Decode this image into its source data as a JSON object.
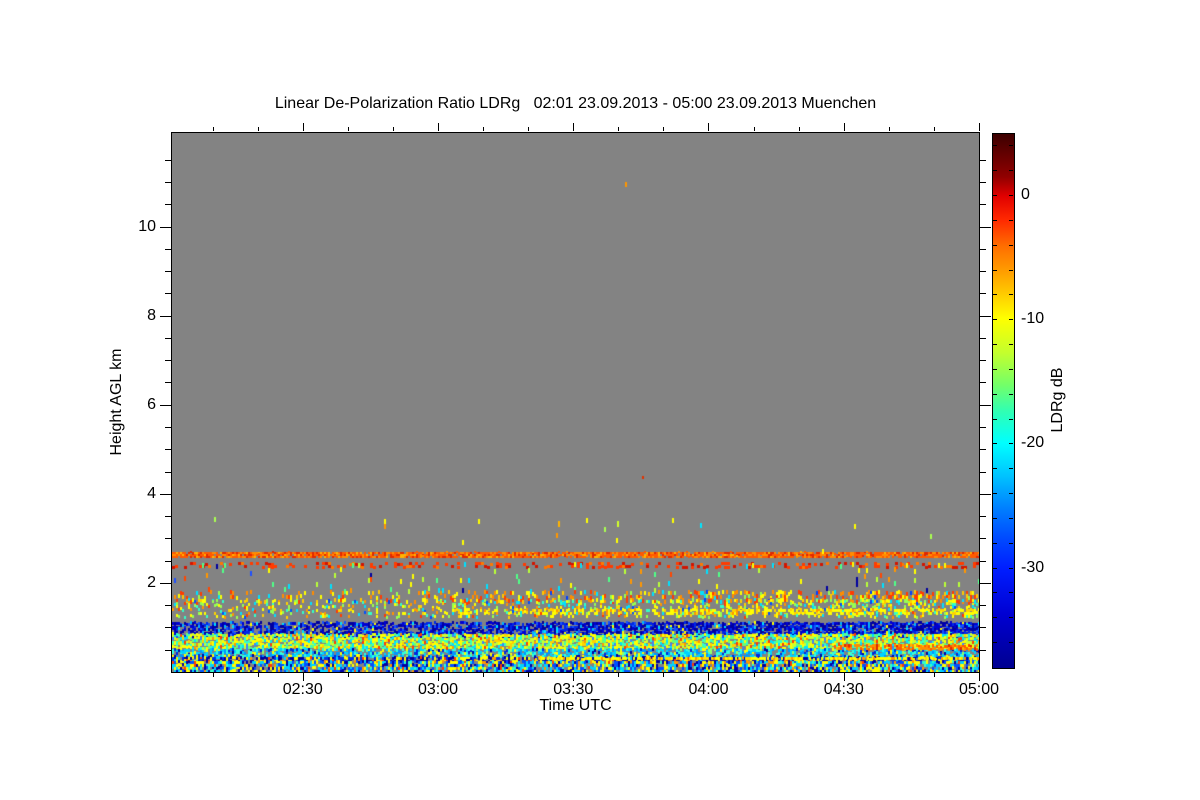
{
  "chart_data": {
    "type": "heatmap",
    "title": "Linear De-Polarization Ratio LDRg   02:01 23.09.2013 - 05:00 23.09.2013 Muenchen",
    "instrument_quantity": "Linear De-Polarization Ratio LDRg",
    "time_start": "02:01 23.09.2013",
    "time_end": "05:00 23.09.2013",
    "station": "Muenchen",
    "background_color": "#838383",
    "x_axis": {
      "label": "Time UTC",
      "start_hhmm": "02:01",
      "end_hhmm": "05:00",
      "duration_min": 179,
      "major_ticks": [
        {
          "label": "02:30",
          "min": 29
        },
        {
          "label": "03:00",
          "min": 59
        },
        {
          "label": "03:30",
          "min": 89
        },
        {
          "label": "04:00",
          "min": 119
        },
        {
          "label": "04:30",
          "min": 149
        },
        {
          "label": "05:00",
          "min": 179
        }
      ],
      "minor_interval_min": 10
    },
    "y_axis": {
      "label": "Height AGL km",
      "range_km": [
        0,
        12.1
      ],
      "major_ticks": [
        {
          "label": "2",
          "km": 2
        },
        {
          "label": "4",
          "km": 4
        },
        {
          "label": "6",
          "km": 6
        },
        {
          "label": "8",
          "km": 8
        },
        {
          "label": "10",
          "km": 10
        }
      ],
      "minor_interval_km": 0.5
    },
    "colorbar": {
      "label": "LDRg dB",
      "range_db": [
        5,
        -38
      ],
      "ticks": [
        {
          "label": "0",
          "db": 0
        },
        {
          "label": "-10",
          "db": -10
        },
        {
          "label": "-20",
          "db": -20
        },
        {
          "label": "-30",
          "db": -30
        }
      ],
      "minor_interval_db": 2,
      "gradient": [
        [
          0.0,
          "#3c0000"
        ],
        [
          0.03,
          "#5c0000"
        ],
        [
          0.08,
          "#900000"
        ],
        [
          0.116,
          "#e00000"
        ],
        [
          0.16,
          "#ff2800"
        ],
        [
          0.21,
          "#ff6e00"
        ],
        [
          0.26,
          "#ffa000"
        ],
        [
          0.3,
          "#ffcc00"
        ],
        [
          0.345,
          "#ffff00"
        ],
        [
          0.41,
          "#c3ff2d"
        ],
        [
          0.47,
          "#73ff69"
        ],
        [
          0.52,
          "#2fffb4"
        ],
        [
          0.579,
          "#00ffff"
        ],
        [
          0.64,
          "#00c3ff"
        ],
        [
          0.7,
          "#0080ff"
        ],
        [
          0.755,
          "#004cff"
        ],
        [
          0.813,
          "#001eff"
        ],
        [
          0.9,
          "#0000d2"
        ],
        [
          1.0,
          "#000090"
        ]
      ]
    },
    "seed": 7,
    "layers": [
      {
        "name": "orange-line-2.6km",
        "t": [
          0,
          1
        ],
        "h": [
          2.585,
          2.695
        ],
        "density": 0.92,
        "ramp": 1,
        "cell": [
          2,
          2
        ],
        "jitter": 1,
        "colors": [
          [
            "#ff5a00",
            5
          ],
          [
            "#ff8c00",
            3
          ],
          [
            "#e12800",
            3
          ],
          [
            "#ffb400",
            1
          ]
        ]
      },
      {
        "name": "dashed-red-line-2.4km",
        "t": [
          0,
          1
        ],
        "h": [
          2.36,
          2.46
        ],
        "density": 0.38,
        "ramp": 1,
        "cell": [
          3,
          3
        ],
        "jitter": 1,
        "colors": [
          [
            "#ff3c00",
            4
          ],
          [
            "#d21400",
            3
          ],
          [
            "#ff7800",
            2
          ]
        ]
      },
      {
        "name": "sparse-specks-3km",
        "t": [
          0,
          1
        ],
        "h": [
          2.7,
          3.45
        ],
        "density": 0.003,
        "ramp": 1,
        "cell": [
          2,
          5
        ],
        "jitter": 3,
        "colors": [
          [
            "#ffff00",
            3
          ],
          [
            "#aaff50",
            2
          ],
          [
            "#ff9600",
            1
          ],
          [
            "#00e6ff",
            1
          ]
        ]
      },
      {
        "name": "sparse-specks-2km",
        "t": [
          0,
          1
        ],
        "h": [
          1.82,
          2.45
        ],
        "density": 0.045,
        "ramp": 1,
        "cell": [
          2,
          5
        ],
        "jitter": 3,
        "colors": [
          [
            "#50ff87",
            3
          ],
          [
            "#00e1ff",
            3
          ],
          [
            "#ffff00",
            3
          ],
          [
            "#ff4600",
            1.5
          ],
          [
            "#ff9600",
            1.5
          ],
          [
            "#b9ff37",
            2
          ],
          [
            "#1e50ff",
            1
          ],
          [
            "#0000a0",
            0.7
          ]
        ]
      },
      {
        "name": "red-orange-layer-1.7km",
        "t": [
          0,
          1
        ],
        "h": [
          1.62,
          1.82
        ],
        "density": 0.22,
        "ramp": 2.4,
        "cell": [
          2,
          4
        ],
        "jitter": 2,
        "colors": [
          [
            "#ff3c00",
            3
          ],
          [
            "#ff8c00",
            3
          ],
          [
            "#ffff00",
            3
          ],
          [
            "#ffc800",
            2
          ],
          [
            "#96ff50",
            1
          ],
          [
            "#00e1ff",
            1
          ],
          [
            "#0040ff",
            0.5
          ]
        ]
      },
      {
        "name": "mixed-layer-1.45km",
        "t": [
          0,
          1
        ],
        "h": [
          1.28,
          1.62
        ],
        "density": 0.22,
        "ramp": 2.0,
        "cell": [
          2,
          3
        ],
        "jitter": 2,
        "colors": [
          [
            "#ffff00",
            5
          ],
          [
            "#ffd200",
            2
          ],
          [
            "#ff9600",
            2
          ],
          [
            "#96ff50",
            3
          ],
          [
            "#32ffc8",
            2
          ],
          [
            "#ff3c00",
            1
          ],
          [
            "#0050ff",
            1
          ],
          [
            "#00e1ff",
            1.5
          ]
        ]
      },
      {
        "name": "yellow-line-1.35km",
        "t": [
          0.35,
          1
        ],
        "h": [
          1.33,
          1.42
        ],
        "density": 0.5,
        "ramp": 1,
        "cell": [
          2,
          3
        ],
        "jitter": 1,
        "colors": [
          [
            "#ffff00",
            5
          ],
          [
            "#ffd200",
            2
          ],
          [
            "#ff9600",
            1
          ]
        ]
      },
      {
        "name": "navy-band-1km",
        "t": [
          0,
          1
        ],
        "h": [
          0.85,
          1.12
        ],
        "density": 0.78,
        "ramp": 1.3,
        "cell": [
          2,
          3
        ],
        "jitter": 2,
        "colors": [
          [
            "#0000a0",
            5
          ],
          [
            "#0028e6",
            3
          ],
          [
            "#0000d2",
            3
          ],
          [
            "#1450ff",
            2
          ],
          [
            "#00b4ff",
            0.8
          ],
          [
            "#00e1ff",
            0.6
          ],
          [
            "#ffff00",
            0.4
          ]
        ]
      },
      {
        "name": "bright-band-0.7km",
        "t": [
          0,
          1
        ],
        "h": [
          0.52,
          0.85
        ],
        "density": 0.96,
        "ramp": 1,
        "cell": [
          2,
          3
        ],
        "jitter": 2,
        "colors": [
          [
            "#ffff00",
            6
          ],
          [
            "#c8ff32",
            4
          ],
          [
            "#64ff78",
            3
          ],
          [
            "#32ffc8",
            3
          ],
          [
            "#00e1ff",
            2
          ],
          [
            "#ffd200",
            2
          ],
          [
            "#ff9600",
            1
          ],
          [
            "#ff3c00",
            0.7
          ],
          [
            "#3c82ff",
            0.7
          ]
        ]
      },
      {
        "name": "cyan-band-0.45km",
        "t": [
          0,
          1
        ],
        "h": [
          0.34,
          0.52
        ],
        "density": 0.85,
        "ramp": 1,
        "cell": [
          2,
          3
        ],
        "jitter": 2,
        "colors": [
          [
            "#00d2ff",
            5
          ],
          [
            "#32ffdc",
            3
          ],
          [
            "#0096ff",
            3
          ],
          [
            "#ffff00",
            2
          ],
          [
            "#0028dc",
            2
          ],
          [
            "#0000a0",
            1
          ],
          [
            "#96ff64",
            1
          ]
        ]
      },
      {
        "name": "dark-mixed-line-0.3km",
        "t": [
          0,
          1
        ],
        "h": [
          0.25,
          0.34
        ],
        "density": 0.9,
        "ramp": 1,
        "cell": [
          2,
          3
        ],
        "jitter": 1,
        "colors": [
          [
            "#0000a0",
            4
          ],
          [
            "#0032e6",
            2
          ],
          [
            "#ffff00",
            3
          ],
          [
            "#ff9600",
            1
          ],
          [
            "#00d2ff",
            1
          ],
          [
            "#ff3c00",
            0.7
          ]
        ]
      },
      {
        "name": "yellow-line-0.3km",
        "t": [
          0.45,
          1
        ],
        "h": [
          0.28,
          0.335
        ],
        "density": 0.72,
        "ramp": 1,
        "cell": [
          2,
          3
        ],
        "jitter": 1,
        "colors": [
          [
            "#ffff00",
            5
          ],
          [
            "#ffdc00",
            2
          ],
          [
            "#ff9600",
            1
          ]
        ]
      },
      {
        "name": "bottom-mixed-band",
        "t": [
          0,
          1
        ],
        "h": [
          0.02,
          0.25
        ],
        "density": 0.92,
        "ramp": 1,
        "cell": [
          2,
          3
        ],
        "jitter": 1,
        "colors": [
          [
            "#0050ff",
            3
          ],
          [
            "#0000a0",
            2
          ],
          [
            "#00d2ff",
            3
          ],
          [
            "#ffff00",
            3
          ],
          [
            "#32ffc8",
            1.5
          ],
          [
            "#ff9600",
            0.8
          ],
          [
            "#ff3c00",
            0.5
          ],
          [
            "#838383",
            1
          ]
        ]
      },
      {
        "name": "orange-segment-right-0.55km",
        "t": [
          0.82,
          1
        ],
        "h": [
          0.52,
          0.62
        ],
        "density": 0.75,
        "ramp": 1,
        "cell": [
          2,
          3
        ],
        "jitter": 1,
        "colors": [
          [
            "#ff8c00",
            4
          ],
          [
            "#ff5a00",
            3
          ],
          [
            "#e12800",
            1
          ],
          [
            "#ffb400",
            1
          ]
        ]
      }
    ],
    "spots": [
      {
        "t": 0.561,
        "h": 10.95,
        "color": "#ff9600",
        "w": 2,
        "p": 5
      },
      {
        "t": 0.583,
        "h": 4.36,
        "color": "#e13200",
        "w": 2,
        "p": 3
      },
      {
        "t": 0.478,
        "h": 3.32,
        "color": "#ffb400",
        "w": 2,
        "p": 6
      },
      {
        "t": 0.551,
        "h": 3.32,
        "color": "#d2ff28",
        "w": 2,
        "p": 6
      }
    ]
  }
}
